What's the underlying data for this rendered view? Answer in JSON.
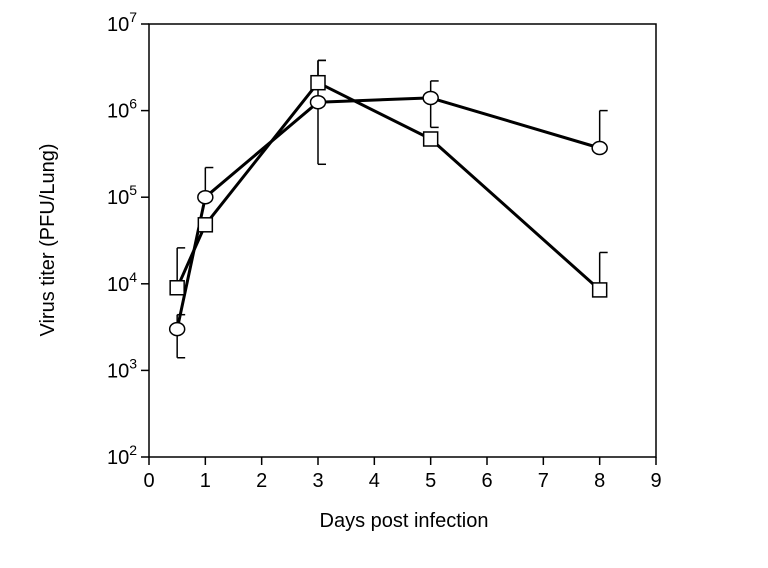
{
  "chart_data": {
    "type": "line",
    "title": "",
    "xlabel": "Days post infection",
    "ylabel": "Virus titer (PFU/Lung)",
    "xlim": [
      0,
      9
    ],
    "ylim": [
      100,
      10000000
    ],
    "y_scale": "log",
    "x_ticks": [
      "0",
      "1",
      "2",
      "3",
      "4",
      "5",
      "6",
      "7",
      "8",
      "9"
    ],
    "y_ticks": [
      {
        "value": 100,
        "base": "10",
        "exp": "2"
      },
      {
        "value": 1000,
        "base": "10",
        "exp": "3"
      },
      {
        "value": 10000,
        "base": "10",
        "exp": "4"
      },
      {
        "value": 100000,
        "base": "10",
        "exp": "5"
      },
      {
        "value": 1000000,
        "base": "10",
        "exp": "6"
      },
      {
        "value": 10000000,
        "base": "10",
        "exp": "7"
      }
    ],
    "grid": false,
    "legend": false,
    "series": [
      {
        "marker": "circle",
        "x": [
          0.5,
          1,
          3,
          5,
          8
        ],
        "y": [
          3000,
          100000,
          1250000,
          1400000,
          370000
        ],
        "err_upper": [
          4400,
          220000,
          3800000,
          2200000,
          1000000
        ],
        "err_lower": [
          1400,
          null,
          240000,
          640000,
          null
        ]
      },
      {
        "marker": "square",
        "x": [
          0.5,
          1,
          3,
          5,
          8
        ],
        "y": [
          9000,
          48000,
          2100000,
          470000,
          8500
        ],
        "err_upper": [
          26000,
          null,
          3800000,
          null,
          23000
        ],
        "err_lower": [
          null,
          null,
          null,
          null,
          null
        ]
      }
    ]
  }
}
